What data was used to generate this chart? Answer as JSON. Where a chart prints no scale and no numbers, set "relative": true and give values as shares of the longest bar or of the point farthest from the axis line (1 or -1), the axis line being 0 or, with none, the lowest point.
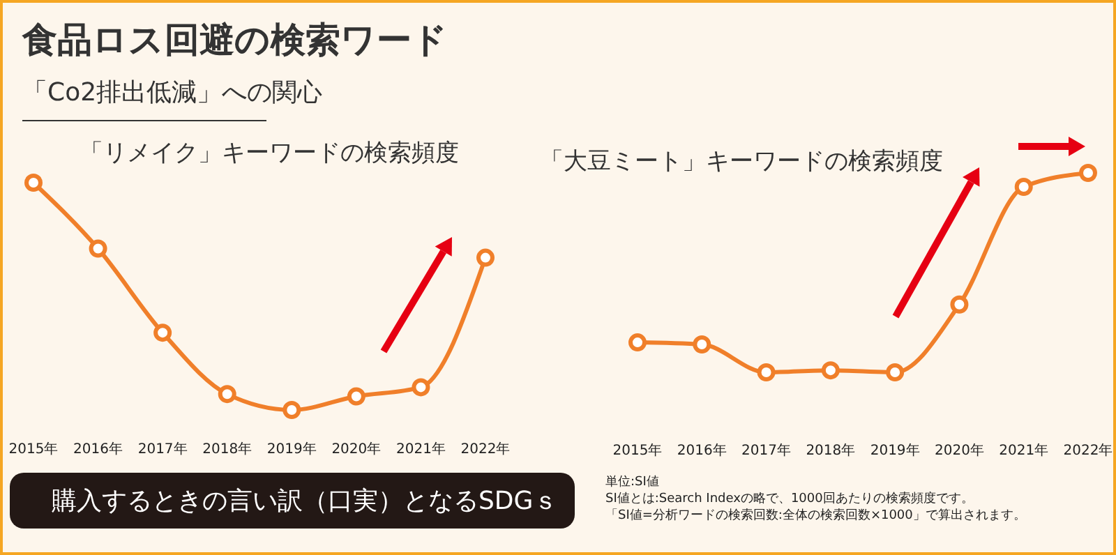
{
  "chart_data": [
    {
      "type": "line",
      "title": "「リメイク」キーワードの検索頻度",
      "categories": [
        "2015年",
        "2016年",
        "2017年",
        "2018年",
        "2019年",
        "2020年",
        "2021年",
        "2022年"
      ],
      "relative": true,
      "marker": "circle",
      "line_style": "solid",
      "grid": false,
      "legend": false,
      "series": [
        {
          "color": "#f07f2a",
          "values": [
            1,
            0.71,
            0.34,
            0.07,
            0,
            0.06,
            0.1,
            0.67
          ]
        }
      ],
      "annotations": [
        "食品ロス回避の検索ワード",
        "「Co2排出低減」への関心",
        "購入するときの言い訳（口実）となるSDGｓ"
      ]
    },
    {
      "type": "line",
      "title": "「大豆ミート」キーワードの検索頻度",
      "categories": [
        "2015年",
        "2016年",
        "2017年",
        "2018年",
        "2019年",
        "2020年",
        "2021年",
        "2022年"
      ],
      "relative": true,
      "marker": "circle",
      "line_style": "solid",
      "grid": false,
      "legend": false,
      "series": [
        {
          "color": "#f07f2a",
          "values": [
            0.15,
            0.14,
            0,
            0.01,
            0,
            0.34,
            0.93,
            1
          ]
        }
      ],
      "annotations": [
        "単位:SI値",
        "SI値とは:Search Indexの略で、1000回あたりの検索頻度です。",
        "「SI値=分析ワードの検索回数:全体の検索回数×1000」で算出されます。"
      ]
    }
  ]
}
